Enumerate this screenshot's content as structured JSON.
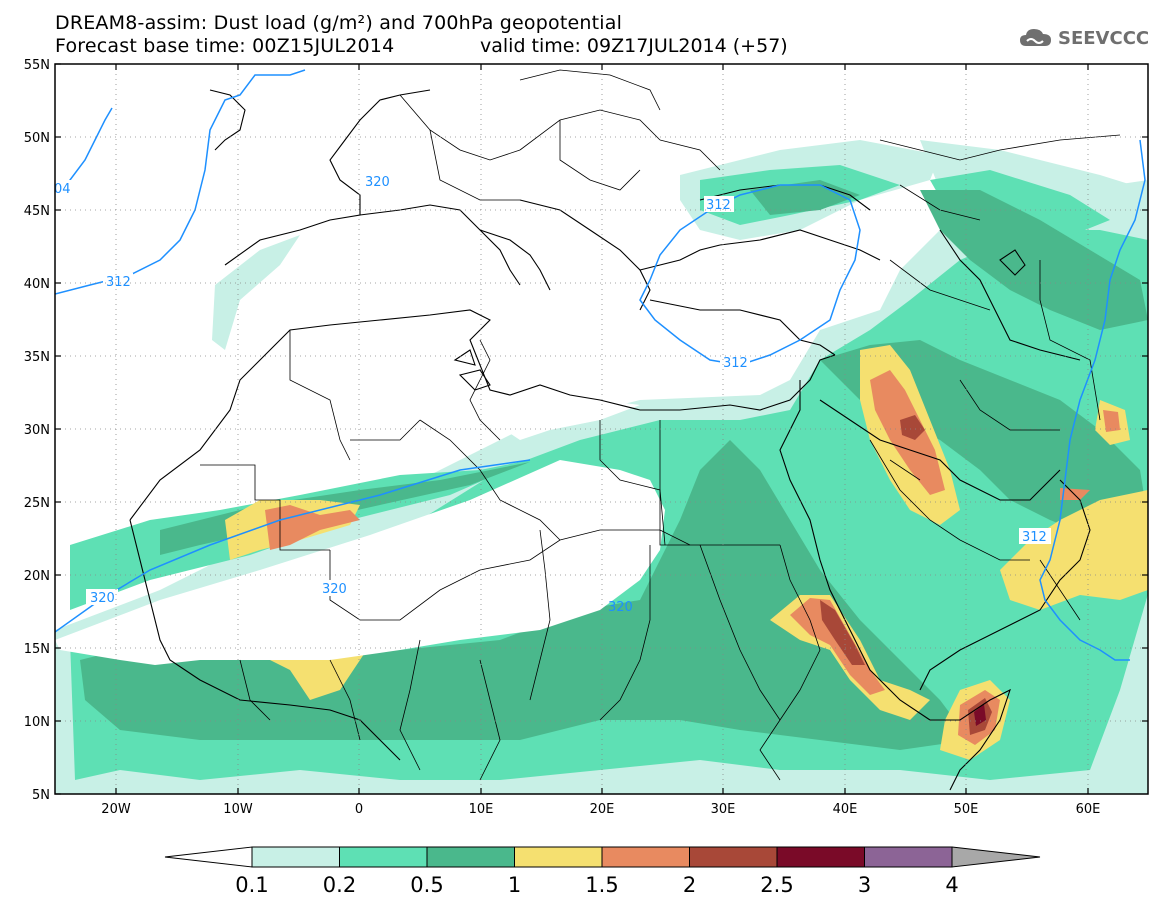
{
  "title": {
    "line1": "DREAM8-assim: Dust load (g/m²) and 700hPa geopotential",
    "line2_left": "Forecast base time: 00Z15JUL2014",
    "line2_right": "valid time: 09Z17JUL2014 (+57)"
  },
  "logo": {
    "text": "SEEVCCC",
    "icon": "cloud-icon",
    "color": "#6f6f6f"
  },
  "axes": {
    "lat_labels": [
      "55N",
      "50N",
      "45N",
      "40N",
      "35N",
      "30N",
      "25N",
      "20N",
      "15N",
      "10N",
      "5N"
    ],
    "lon_labels": [
      "20W",
      "10W",
      "0",
      "10E",
      "20E",
      "30E",
      "40E",
      "50E",
      "60E"
    ]
  },
  "contour_labels": [
    "04",
    "320",
    "312",
    "312",
    "312",
    "320",
    "320",
    "320",
    "312"
  ],
  "colorbar": {
    "ticks": [
      "0.1",
      "0.2",
      "0.5",
      "1",
      "1.5",
      "2",
      "2.5",
      "3",
      "4"
    ],
    "colors": [
      "#c8f0e6",
      "#5ee0b4",
      "#4ab88c",
      "#f5e070",
      "#e88a60",
      "#a84838",
      "#7a0a28",
      "#8c6496",
      "#a8a8a8"
    ]
  },
  "colors": {
    "dust_light": "#c8f0e6",
    "dust_mid": "#5ee0b4",
    "dust_dark": "#4ab88c",
    "dust_yellow": "#f5e070",
    "dust_orange": "#e88a60",
    "dust_brown": "#a84838",
    "dust_maroon": "#7a0a28",
    "geopotential_line": "#1e90ff"
  }
}
